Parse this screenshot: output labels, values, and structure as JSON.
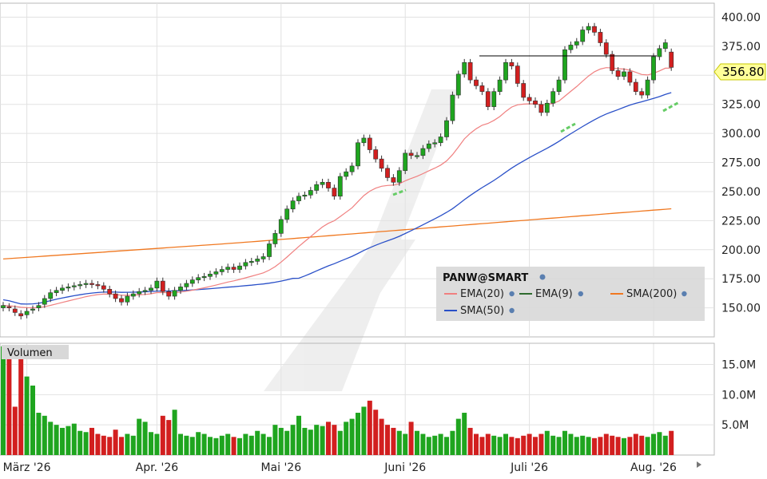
{
  "chart_data": {
    "type": "candlestick",
    "symbol": "PANW@SMART",
    "current_price_label": "356.80",
    "colors": {
      "up": "#1fa51f",
      "down": "#d21f1f",
      "ema20": "#f08080",
      "ema9": "#2e6b2e",
      "sma200": "#f07820",
      "sma50": "#2a50c8",
      "price_tag": "#ffff99"
    },
    "legend": [
      {
        "label": "EMA(20)",
        "color": "#f08080"
      },
      {
        "label": "EMA(9)",
        "color": "#2e6b2e"
      },
      {
        "label": "SMA(200)",
        "color": "#f07820"
      },
      {
        "label": "SMA(50)",
        "color": "#2a50c8"
      }
    ],
    "price_axis": {
      "min": 125,
      "max": 412,
      "ticks": [
        "400.00",
        "375.00",
        "350.00",
        "325.00",
        "300.00",
        "275.00",
        "250.00",
        "225.00",
        "200.00",
        "175.00",
        "150.00"
      ],
      "tick_values": [
        400,
        375,
        350,
        325,
        300,
        275,
        250,
        225,
        200,
        175,
        150
      ]
    },
    "volume_panel": {
      "label": "Volumen",
      "max": 18500000,
      "ticks": [
        "15.0M",
        "10.0M",
        "5.0M"
      ],
      "tick_values": [
        15000000,
        10000000,
        5000000
      ]
    },
    "x_labels": [
      "März '26",
      "Apr. '26",
      "Mai '26",
      "Juni '26",
      "Juli '26",
      "Aug. '26"
    ],
    "month_start_index": [
      4,
      26,
      47,
      68,
      89,
      110
    ],
    "closes": [
      152,
      150,
      146,
      143,
      147,
      149,
      152,
      158,
      163,
      165,
      167,
      168,
      169,
      170,
      171,
      170,
      169,
      166,
      162,
      158,
      155,
      160,
      162,
      164,
      165,
      167,
      173,
      164,
      160,
      165,
      168,
      171,
      174,
      176,
      177,
      179,
      181,
      183,
      185,
      183,
      186,
      189,
      190,
      192,
      194,
      205,
      214,
      226,
      235,
      242,
      246,
      247,
      251,
      256,
      258,
      253,
      246,
      263,
      267,
      272,
      292,
      296,
      286,
      278,
      270,
      262,
      258,
      268,
      283,
      281,
      281,
      287,
      291,
      292,
      297,
      311,
      333,
      351,
      361,
      346,
      341,
      336,
      323,
      336,
      346,
      361,
      358,
      343,
      331,
      328,
      325,
      318,
      326,
      336,
      346,
      372,
      376,
      379,
      389,
      392,
      387,
      378,
      368,
      354,
      349,
      353,
      344,
      336,
      333,
      346,
      366,
      373,
      378,
      356.8
    ],
    "opens": [
      150,
      151,
      149,
      145,
      144,
      148,
      150,
      153,
      158,
      163,
      165,
      167,
      168,
      169,
      170,
      171,
      170,
      169,
      166,
      162,
      158,
      155,
      160,
      162,
      164,
      165,
      167,
      173,
      164,
      160,
      165,
      168,
      171,
      174,
      176,
      177,
      179,
      181,
      183,
      185,
      183,
      186,
      189,
      190,
      192,
      194,
      205,
      214,
      226,
      235,
      242,
      246,
      247,
      251,
      256,
      258,
      253,
      246,
      263,
      267,
      272,
      292,
      296,
      286,
      278,
      270,
      262,
      258,
      268,
      283,
      281,
      281,
      287,
      291,
      292,
      297,
      311,
      333,
      351,
      361,
      346,
      341,
      336,
      323,
      336,
      346,
      361,
      358,
      343,
      331,
      328,
      325,
      318,
      326,
      336,
      346,
      372,
      376,
      379,
      389,
      392,
      387,
      378,
      368,
      354,
      349,
      353,
      344,
      336,
      333,
      346,
      366,
      373,
      370
    ],
    "volumes_m": [
      18.0,
      16.5,
      8.0,
      17.0,
      13.0,
      11.5,
      7.0,
      6.5,
      5.5,
      5.0,
      4.5,
      4.8,
      5.2,
      4.0,
      3.8,
      4.5,
      3.5,
      3.2,
      3.0,
      4.2,
      3.0,
      3.5,
      3.2,
      6.0,
      5.5,
      3.8,
      3.5,
      6.5,
      5.8,
      7.5,
      3.5,
      3.2,
      3.0,
      3.8,
      3.5,
      3.0,
      2.8,
      3.2,
      3.5,
      3.0,
      2.8,
      3.5,
      3.2,
      4.0,
      3.5,
      3.0,
      5.0,
      4.5,
      4.0,
      5.0,
      6.5,
      4.5,
      4.2,
      5.0,
      4.8,
      5.5,
      5.0,
      4.0,
      5.5,
      6.0,
      7.0,
      8.0,
      9.0,
      7.5,
      6.0,
      5.0,
      4.5,
      4.0,
      3.5,
      5.5,
      4.0,
      3.5,
      3.0,
      3.2,
      3.5,
      3.0,
      4.0,
      6.0,
      7.0,
      4.5,
      3.5,
      3.0,
      3.5,
      3.2,
      3.0,
      3.5,
      3.0,
      2.8,
      3.2,
      3.5,
      3.0,
      3.5,
      4.0,
      3.2,
      3.0,
      4.0,
      3.5,
      3.0,
      3.2,
      3.0,
      2.8,
      3.0,
      3.5,
      3.2,
      3.0,
      2.8,
      3.0,
      3.5,
      3.2,
      3.0,
      3.5,
      3.8,
      3.2,
      4.0
    ]
  }
}
